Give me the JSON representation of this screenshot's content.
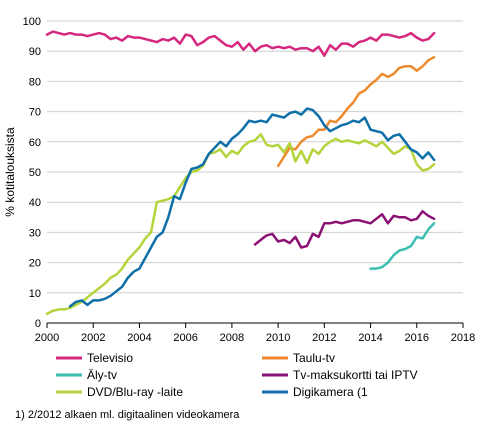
{
  "chart_data": {
    "type": "line",
    "title": "",
    "xlabel": "",
    "ylabel": "% kotitalouksista",
    "xlim": [
      2000,
      2018
    ],
    "ylim": [
      0,
      100
    ],
    "xticks": [
      "2000",
      "2002",
      "2004",
      "2006",
      "2008",
      "2010",
      "2012",
      "2014",
      "2016",
      "2018"
    ],
    "yticks": [
      "0",
      "10",
      "20",
      "30",
      "40",
      "50",
      "60",
      "70",
      "80",
      "90",
      "100"
    ],
    "grid": "horizontal",
    "legend_position": "bottom",
    "footnote": "1) 2/2012 alkaen ml. digitaalinen videokamera",
    "series": [
      {
        "name": "Televisio",
        "color": "#d6277f",
        "x": [
          2000.0,
          2000.25,
          2000.5,
          2000.75,
          2001.0,
          2001.25,
          2001.5,
          2001.75,
          2002.0,
          2002.25,
          2002.5,
          2002.75,
          2003.0,
          2003.25,
          2003.5,
          2003.75,
          2004.0,
          2004.25,
          2004.5,
          2004.75,
          2005.0,
          2005.25,
          2005.5,
          2005.75,
          2006.0,
          2006.25,
          2006.5,
          2006.75,
          2007.0,
          2007.25,
          2007.5,
          2007.75,
          2008.0,
          2008.25,
          2008.5,
          2008.75,
          2009.0,
          2009.25,
          2009.5,
          2009.75,
          2010.0,
          2010.25,
          2010.5,
          2010.75,
          2011.0,
          2011.25,
          2011.5,
          2011.75,
          2012.0,
          2012.25,
          2012.5,
          2012.75,
          2013.0,
          2013.25,
          2013.5,
          2013.75,
          2014.0,
          2014.25,
          2014.5,
          2014.75,
          2015.0,
          2015.25,
          2015.5,
          2015.75,
          2016.0,
          2016.25,
          2016.5,
          2016.75
        ],
        "values": [
          95.5,
          96.5,
          96.0,
          95.5,
          96.0,
          95.5,
          95.5,
          95.0,
          95.5,
          96.0,
          95.5,
          94.0,
          94.5,
          93.5,
          95.0,
          94.5,
          94.5,
          94.0,
          93.5,
          93.0,
          94.0,
          93.5,
          94.5,
          92.5,
          95.5,
          95.0,
          92.0,
          93.0,
          94.5,
          95.0,
          93.5,
          92.0,
          91.5,
          93.0,
          90.5,
          92.5,
          90.0,
          91.5,
          92.0,
          91.0,
          91.5,
          91.0,
          91.5,
          90.5,
          91.0,
          91.0,
          90.0,
          91.5,
          88.5,
          92.0,
          90.5,
          92.5,
          92.5,
          91.5,
          93.0,
          93.5,
          94.5,
          93.5,
          95.5,
          95.5,
          95.0,
          94.5,
          95.0,
          96.0,
          94.5,
          93.5,
          94.0,
          96.0
        ]
      },
      {
        "name": "Taulu-tv",
        "color": "#ee8a2d",
        "x": [
          2010.0,
          2010.25,
          2010.5,
          2010.75,
          2011.0,
          2011.25,
          2011.5,
          2011.75,
          2012.0,
          2012.25,
          2012.5,
          2012.75,
          2013.0,
          2013.25,
          2013.5,
          2013.75,
          2014.0,
          2014.25,
          2014.5,
          2014.75,
          2015.0,
          2015.25,
          2015.5,
          2015.75,
          2016.0,
          2016.25,
          2016.5,
          2016.75
        ],
        "values": [
          52.0,
          55.0,
          58.0,
          57.5,
          60.0,
          61.5,
          62.0,
          64.0,
          64.0,
          67.0,
          66.5,
          68.5,
          71.0,
          73.0,
          76.0,
          77.0,
          79.0,
          80.5,
          82.5,
          81.5,
          82.5,
          84.5,
          85.0,
          85.0,
          83.5,
          85.0,
          87.0,
          88.0
        ]
      },
      {
        "name": "Äly-tv",
        "color": "#3cbfb0",
        "x": [
          2014.0,
          2014.25,
          2014.5,
          2014.75,
          2015.0,
          2015.25,
          2015.5,
          2015.75,
          2016.0,
          2016.25,
          2016.5,
          2016.75
        ],
        "values": [
          18.0,
          18.0,
          18.5,
          20.0,
          22.5,
          24.0,
          24.5,
          25.5,
          28.5,
          28.0,
          31.0,
          33.0
        ]
      },
      {
        "name": "Tv-maksukortti tai IPTV",
        "color": "#8c1174",
        "x": [
          2009.0,
          2009.25,
          2009.5,
          2009.75,
          2010.0,
          2010.25,
          2010.5,
          2010.75,
          2011.0,
          2011.25,
          2011.5,
          2011.75,
          2012.0,
          2012.25,
          2012.5,
          2012.75,
          2013.0,
          2013.25,
          2013.5,
          2013.75,
          2014.0,
          2014.25,
          2014.5,
          2014.75,
          2015.0,
          2015.25,
          2015.5,
          2015.75,
          2016.0,
          2016.25,
          2016.5,
          2016.75
        ],
        "values": [
          26.0,
          27.5,
          29.0,
          29.5,
          27.0,
          27.5,
          26.5,
          28.5,
          25.0,
          25.5,
          29.5,
          28.5,
          33.0,
          33.0,
          33.5,
          33.0,
          33.5,
          34.0,
          34.0,
          33.5,
          33.0,
          34.5,
          36.0,
          33.0,
          35.5,
          35.0,
          35.0,
          34.0,
          34.5,
          37.0,
          35.5,
          34.5
        ]
      },
      {
        "name": "DVD/Blu-ray -laite",
        "color": "#b3d43a",
        "x": [
          2000.0,
          2000.25,
          2000.5,
          2000.75,
          2001.0,
          2001.25,
          2001.5,
          2001.75,
          2002.0,
          2002.25,
          2002.5,
          2002.75,
          2003.0,
          2003.25,
          2003.5,
          2003.75,
          2004.0,
          2004.25,
          2004.5,
          2004.75,
          2005.0,
          2005.25,
          2005.5,
          2005.75,
          2006.0,
          2006.25,
          2006.5,
          2006.75,
          2007.0,
          2007.25,
          2007.5,
          2007.75,
          2008.0,
          2008.25,
          2008.5,
          2008.75,
          2009.0,
          2009.25,
          2009.5,
          2009.75,
          2010.0,
          2010.25,
          2010.5,
          2010.75,
          2011.0,
          2011.25,
          2011.5,
          2011.75,
          2012.0,
          2012.25,
          2012.5,
          2012.75,
          2013.0,
          2013.25,
          2013.5,
          2013.75,
          2014.0,
          2014.25,
          2014.5,
          2014.75,
          2015.0,
          2015.25,
          2015.5,
          2015.75,
          2016.0,
          2016.25,
          2016.5,
          2016.75
        ],
        "values": [
          3.0,
          4.0,
          4.5,
          4.5,
          5.0,
          6.0,
          7.0,
          8.5,
          10.0,
          11.5,
          13.0,
          15.0,
          16.0,
          18.0,
          21.0,
          23.0,
          25.0,
          28.0,
          30.0,
          40.0,
          40.5,
          41.0,
          42.0,
          45.0,
          48.0,
          50.0,
          50.5,
          52.0,
          56.0,
          56.5,
          57.5,
          55.0,
          57.0,
          56.0,
          58.5,
          60.0,
          60.5,
          62.5,
          59.0,
          58.5,
          59.0,
          56.5,
          59.5,
          53.5,
          57.0,
          53.0,
          57.5,
          56.0,
          58.5,
          60.0,
          61.0,
          60.0,
          60.5,
          60.0,
          59.5,
          60.5,
          59.5,
          58.5,
          60.0,
          58.0,
          56.0,
          57.0,
          58.5,
          57.5,
          52.5,
          50.5,
          51.0,
          52.5
        ]
      },
      {
        "name": "Digikamera (1",
        "color": "#0f6fa8",
        "x": [
          2001.0,
          2001.25,
          2001.5,
          2001.75,
          2002.0,
          2002.25,
          2002.5,
          2002.75,
          2003.0,
          2003.25,
          2003.5,
          2003.75,
          2004.0,
          2004.25,
          2004.5,
          2004.75,
          2005.0,
          2005.25,
          2005.5,
          2005.75,
          2006.0,
          2006.25,
          2006.5,
          2006.75,
          2007.0,
          2007.25,
          2007.5,
          2007.75,
          2008.0,
          2008.25,
          2008.5,
          2008.75,
          2009.0,
          2009.25,
          2009.5,
          2009.75,
          2010.0,
          2010.25,
          2010.5,
          2010.75,
          2011.0,
          2011.25,
          2011.5,
          2011.75,
          2012.0,
          2012.25,
          2012.5,
          2012.75,
          2013.0,
          2013.25,
          2013.5,
          2013.75,
          2014.0,
          2014.25,
          2014.5,
          2014.75,
          2015.0,
          2015.25,
          2015.5,
          2015.75,
          2016.0,
          2016.25,
          2016.5,
          2016.75
        ],
        "values": [
          5.5,
          7.0,
          7.5,
          6.0,
          7.5,
          7.5,
          8.0,
          9.0,
          10.5,
          12.0,
          15.0,
          17.0,
          18.0,
          21.5,
          25.0,
          28.5,
          30.0,
          35.0,
          42.0,
          41.0,
          46.5,
          51.0,
          51.5,
          52.5,
          56.0,
          58.0,
          60.0,
          58.5,
          61.0,
          62.5,
          64.5,
          67.0,
          66.5,
          67.0,
          66.5,
          69.0,
          68.5,
          68.0,
          69.5,
          70.0,
          69.0,
          71.0,
          70.5,
          68.5,
          65.5,
          63.5,
          64.5,
          65.5,
          66.0,
          67.0,
          66.5,
          68.0,
          64.0,
          63.5,
          63.0,
          60.5,
          62.0,
          62.5,
          60.0,
          57.5,
          56.5,
          54.5,
          56.5,
          54.0
        ]
      }
    ]
  }
}
